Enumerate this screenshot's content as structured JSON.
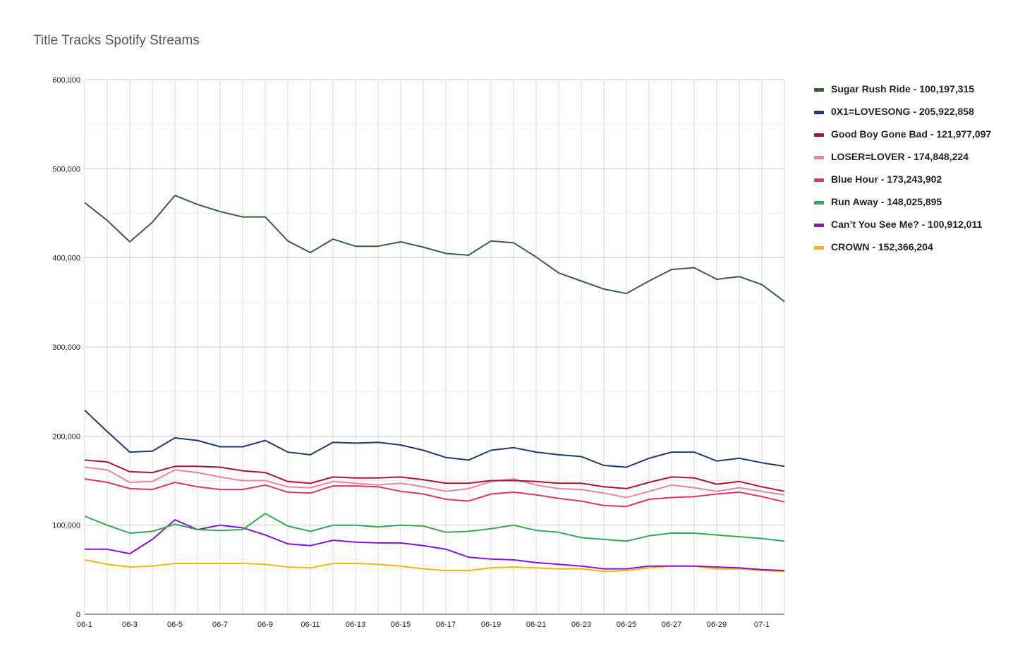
{
  "chart_data": {
    "type": "line",
    "title": "Title Tracks Spotify Streams",
    "xlabel": "",
    "ylabel": "",
    "ylim": [
      0,
      600000
    ],
    "y_ticks": [
      "0",
      "100,000",
      "200,000",
      "300,000",
      "400,000",
      "500,000",
      "600,000"
    ],
    "x_tick_labels": [
      "06-1",
      "06-3",
      "06-5",
      "06-7",
      "06-9",
      "06-11",
      "06-13",
      "06-15",
      "06-17",
      "06-19",
      "06-21",
      "06-23",
      "06-25",
      "06-27",
      "06-29",
      "07-1"
    ],
    "x": [
      "06-1",
      "06-2",
      "06-3",
      "06-4",
      "06-5",
      "06-6",
      "06-7",
      "06-8",
      "06-9",
      "06-10",
      "06-11",
      "06-12",
      "06-13",
      "06-14",
      "06-15",
      "06-16",
      "06-17",
      "06-18",
      "06-19",
      "06-20",
      "06-21",
      "06-22",
      "06-23",
      "06-24",
      "06-25",
      "06-26",
      "06-27",
      "06-28",
      "06-29",
      "06-30",
      "07-1",
      "07-2"
    ],
    "grid": true,
    "legend_position": "right",
    "series": [
      {
        "name": "Sugar Rush Ride - 100,197,315",
        "color": "#3a5f3e",
        "values": [
          462000,
          442000,
          418000,
          440000,
          470000,
          460000,
          452000,
          446000,
          446000,
          419000,
          406000,
          421000,
          413000,
          413000,
          418000,
          412000,
          405000,
          403000,
          419000,
          417000,
          401000,
          383000,
          374000,
          365000,
          360000,
          374000,
          387000,
          389000,
          376000,
          379000,
          370000,
          351000
        ]
      },
      {
        "name": "0X1=LOVESONG - 205,922,858",
        "color": "#1f3a70",
        "values": [
          229000,
          205000,
          182000,
          183000,
          198000,
          195000,
          188000,
          188000,
          195000,
          182000,
          179000,
          193000,
          192000,
          193000,
          190000,
          184000,
          176000,
          173000,
          184000,
          187000,
          182000,
          179000,
          177000,
          167000,
          165000,
          175000,
          182000,
          182000,
          172000,
          175000,
          170000,
          166000
        ]
      },
      {
        "name": "Good Boy Gone Bad - 121,977,097",
        "color": "#b0122e",
        "values": [
          173000,
          171000,
          160000,
          159000,
          166000,
          166000,
          165000,
          161000,
          159000,
          149000,
          147000,
          154000,
          153000,
          153000,
          154000,
          151000,
          147000,
          147000,
          150000,
          150000,
          149000,
          147000,
          147000,
          143000,
          141000,
          148000,
          154000,
          153000,
          146000,
          149000,
          143000,
          138000
        ]
      },
      {
        "name": "LOSER=LOVER - 174,848,224",
        "color": "#f07fa8",
        "values": [
          165000,
          162000,
          148000,
          149000,
          162000,
          159000,
          154000,
          150000,
          150000,
          143000,
          142000,
          149000,
          147000,
          145000,
          147000,
          143000,
          138000,
          141000,
          149000,
          152000,
          145000,
          141000,
          140000,
          136000,
          131000,
          138000,
          145000,
          142000,
          138000,
          142000,
          138000,
          134000
        ]
      },
      {
        "name": "Blue Hour - 173,243,902",
        "color": "#e0355f",
        "values": [
          152000,
          148000,
          141000,
          140000,
          148000,
          143000,
          140000,
          140000,
          145000,
          137000,
          136000,
          144000,
          144000,
          143000,
          138000,
          135000,
          129000,
          127000,
          135000,
          137000,
          134000,
          130000,
          127000,
          122000,
          121000,
          129000,
          131000,
          132000,
          135000,
          137000,
          132000,
          126000
        ]
      },
      {
        "name": "Run Away - 148,025,895",
        "color": "#34a853",
        "values": [
          110000,
          100000,
          91000,
          93000,
          101000,
          95000,
          94000,
          95000,
          113000,
          99000,
          93000,
          100000,
          100000,
          98000,
          100000,
          99000,
          92000,
          93000,
          96000,
          100000,
          94000,
          92000,
          86000,
          84000,
          82000,
          88000,
          91000,
          91000,
          89000,
          87000,
          85000,
          82000
        ]
      },
      {
        "name": "Can’t You See Me? - 100,912,011",
        "color": "#8a12d4",
        "values": [
          73000,
          73000,
          68000,
          84000,
          106000,
          95000,
          100000,
          97000,
          89000,
          79000,
          77000,
          83000,
          81000,
          80000,
          80000,
          77000,
          73000,
          64000,
          62000,
          61000,
          58000,
          56000,
          54000,
          51000,
          51000,
          54000,
          54000,
          54000,
          53000,
          52000,
          50000,
          49000
        ]
      },
      {
        "name": "CROWN - 152,366,204",
        "color": "#f2b807",
        "values": [
          61000,
          56000,
          53000,
          54000,
          57000,
          57000,
          57000,
          57000,
          56000,
          53000,
          52000,
          57000,
          57000,
          56000,
          54000,
          51000,
          49000,
          49000,
          52000,
          53000,
          52000,
          51000,
          51000,
          48000,
          49000,
          52000,
          54000,
          54000,
          51000,
          51000,
          49000,
          48000
        ]
      }
    ]
  }
}
